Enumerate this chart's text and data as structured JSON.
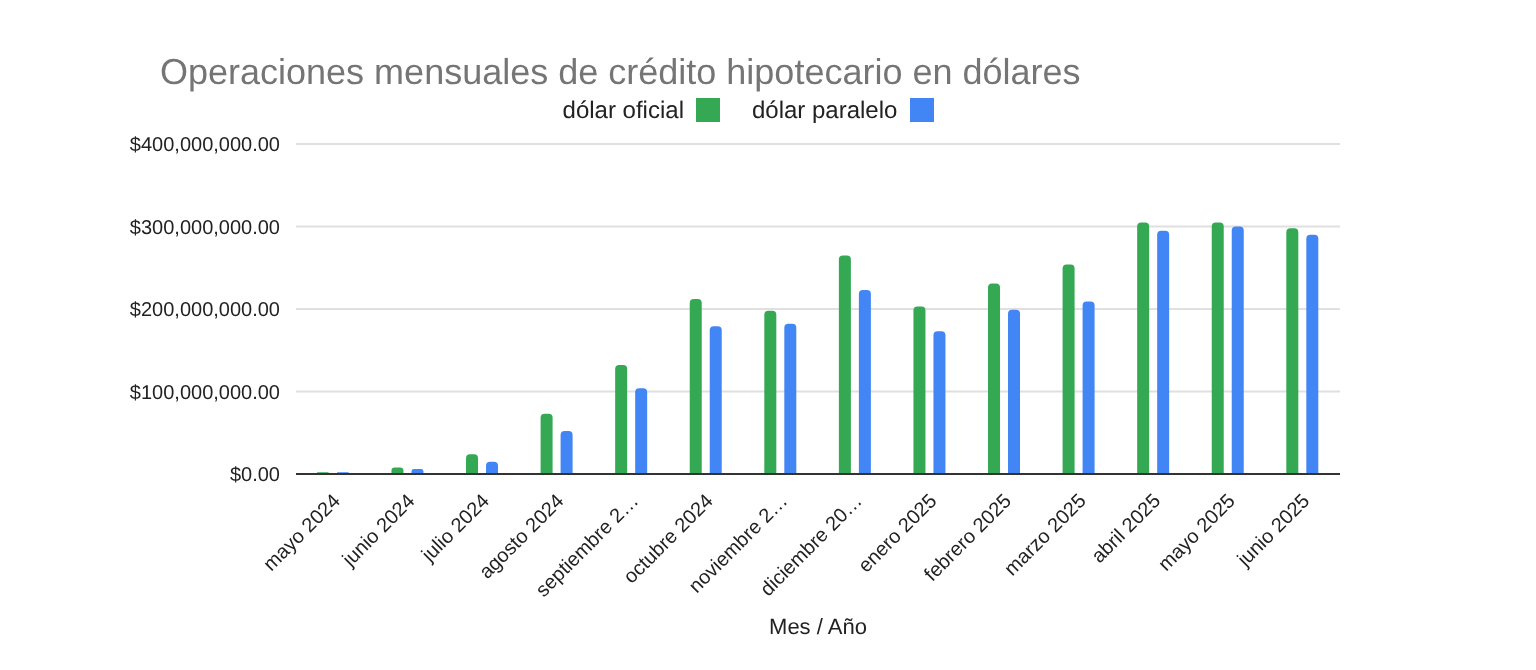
{
  "chart_data": {
    "type": "bar",
    "title": "Operaciones mensuales de crédito hipotecario en dólares",
    "xlabel": "Mes / Año",
    "categories": [
      "mayo 2024",
      "junio 2024",
      "julio 2024",
      "agosto 2024",
      "septiembre 2…",
      "octubre 2024",
      "noviembre 2…",
      "diciembre 20…",
      "enero 2025",
      "febrero 2025",
      "marzo 2025",
      "abril 2025",
      "mayo 2025",
      "junio 2025"
    ],
    "series": [
      {
        "name": "dólar oficial",
        "color": "#34a853",
        "values": [
          2000000,
          8000000,
          24000000,
          73000000,
          132000000,
          212000000,
          198000000,
          265000000,
          203000000,
          231000000,
          254000000,
          305000000,
          305000000,
          298000000
        ]
      },
      {
        "name": "dólar paralelo",
        "color": "#4285f4",
        "values": [
          2000000,
          6000000,
          15000000,
          52000000,
          104000000,
          179000000,
          182000000,
          223000000,
          173000000,
          199000000,
          209000000,
          295000000,
          300000000,
          290000000
        ]
      }
    ],
    "ylim": [
      0,
      400000000
    ],
    "yticks": [
      {
        "value": 0,
        "label": "$0.00"
      },
      {
        "value": 100000000,
        "label": "$100,000,000.00"
      },
      {
        "value": 200000000,
        "label": "$200,000,000.00"
      },
      {
        "value": 300000000,
        "label": "$300,000,000.00"
      },
      {
        "value": 400000000,
        "label": "$400,000,000.00"
      }
    ],
    "grid": "y",
    "legend": "top"
  }
}
